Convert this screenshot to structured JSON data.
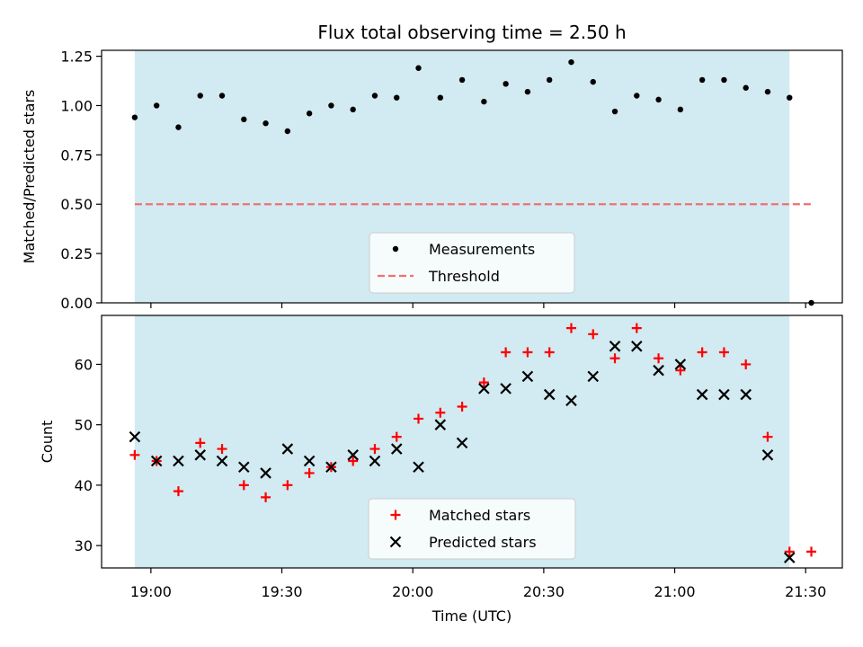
{
  "chart_data": {
    "type": "scatter",
    "title": "Flux total observing time = 2.50 h",
    "xlabel": "Time (UTC)",
    "x_ticks": [
      {
        "value": 0,
        "label": "19:00"
      },
      {
        "value": 30,
        "label": "19:30"
      },
      {
        "value": 60,
        "label": "20:00"
      },
      {
        "value": 90,
        "label": "20:30"
      },
      {
        "value": 120,
        "label": "21:00"
      },
      {
        "value": 150,
        "label": "21:30"
      }
    ],
    "xlim": [
      -11.3,
      158.4
    ],
    "observing_window": {
      "start": -3.7,
      "end": 146.3
    },
    "colors": {
      "window": "#add8e6",
      "measurements": "#000000",
      "threshold": "#f07070",
      "matched": "#ff0000",
      "predicted": "#000000"
    },
    "top": {
      "ylabel": "Matched/Predicted stars",
      "ylim": [
        0,
        1.28
      ],
      "y_ticks": [
        {
          "value": 0,
          "label": "0.00"
        },
        {
          "value": 0.25,
          "label": "0.25"
        },
        {
          "value": 0.5,
          "label": "0.50"
        },
        {
          "value": 0.75,
          "label": "0.75"
        },
        {
          "value": 1.0,
          "label": "1.00"
        },
        {
          "value": 1.25,
          "label": "1.25"
        }
      ],
      "threshold": {
        "value": 0.5,
        "x_start": -3.7,
        "x_end": 151.3
      },
      "measurements": {
        "x": [
          -3.7,
          1.3,
          6.3,
          11.3,
          16.3,
          21.3,
          26.3,
          31.3,
          36.3,
          41.3,
          46.3,
          51.3,
          56.3,
          61.3,
          66.3,
          71.3,
          76.3,
          81.3,
          86.3,
          91.3,
          96.3,
          101.3,
          106.3,
          111.3,
          116.3,
          121.3,
          126.3,
          131.3,
          136.3,
          141.3,
          146.3,
          151.3
        ],
        "y": [
          0.94,
          1.0,
          0.89,
          1.05,
          1.05,
          0.93,
          0.91,
          0.87,
          0.96,
          1.0,
          0.98,
          1.05,
          1.04,
          1.19,
          1.04,
          1.13,
          1.02,
          1.11,
          1.07,
          1.13,
          1.22,
          1.12,
          0.97,
          1.05,
          1.03,
          0.98,
          1.13,
          1.13,
          1.09,
          1.07,
          1.04,
          0.0
        ]
      },
      "legend": [
        {
          "label": "Measurements",
          "marker": "dot"
        },
        {
          "label": "Threshold",
          "marker": "dashed-line"
        }
      ],
      "legend_position": "lower-center"
    },
    "bottom": {
      "ylabel": "Count",
      "ylim": [
        26.3,
        68.1
      ],
      "y_ticks": [
        {
          "value": 30,
          "label": "30"
        },
        {
          "value": 40,
          "label": "40"
        },
        {
          "value": 50,
          "label": "50"
        },
        {
          "value": 60,
          "label": "60"
        }
      ],
      "series": [
        {
          "name": "Matched stars",
          "marker": "plus",
          "x": [
            -3.7,
            1.3,
            6.3,
            11.3,
            16.3,
            21.3,
            26.3,
            31.3,
            36.3,
            41.3,
            46.3,
            51.3,
            56.3,
            61.3,
            66.3,
            71.3,
            76.3,
            81.3,
            86.3,
            91.3,
            96.3,
            101.3,
            106.3,
            111.3,
            116.3,
            121.3,
            126.3,
            131.3,
            136.3,
            141.3,
            146.3,
            151.3
          ],
          "values": [
            45,
            44,
            39,
            47,
            46,
            40,
            38,
            40,
            42,
            43,
            44,
            46,
            48,
            51,
            52,
            53,
            57,
            62,
            62,
            62,
            66,
            65,
            61,
            66,
            61,
            59,
            62,
            62,
            60,
            48,
            29,
            29
          ]
        },
        {
          "name": "Predicted stars",
          "marker": "x",
          "x": [
            -3.7,
            1.3,
            6.3,
            11.3,
            16.3,
            21.3,
            26.3,
            31.3,
            36.3,
            41.3,
            46.3,
            51.3,
            56.3,
            61.3,
            66.3,
            71.3,
            76.3,
            81.3,
            86.3,
            91.3,
            96.3,
            101.3,
            106.3,
            111.3,
            116.3,
            121.3,
            126.3,
            131.3,
            136.3,
            141.3,
            146.3
          ],
          "values": [
            48,
            44,
            44,
            45,
            44,
            43,
            42,
            46,
            44,
            43,
            45,
            44,
            46,
            43,
            50,
            47,
            56,
            56,
            58,
            55,
            54,
            58,
            63,
            63,
            59,
            60,
            55,
            55,
            55,
            45,
            28
          ]
        }
      ],
      "legend": [
        {
          "label": "Matched stars",
          "marker": "plus"
        },
        {
          "label": "Predicted stars",
          "marker": "x"
        }
      ],
      "legend_position": "lower-center"
    }
  }
}
